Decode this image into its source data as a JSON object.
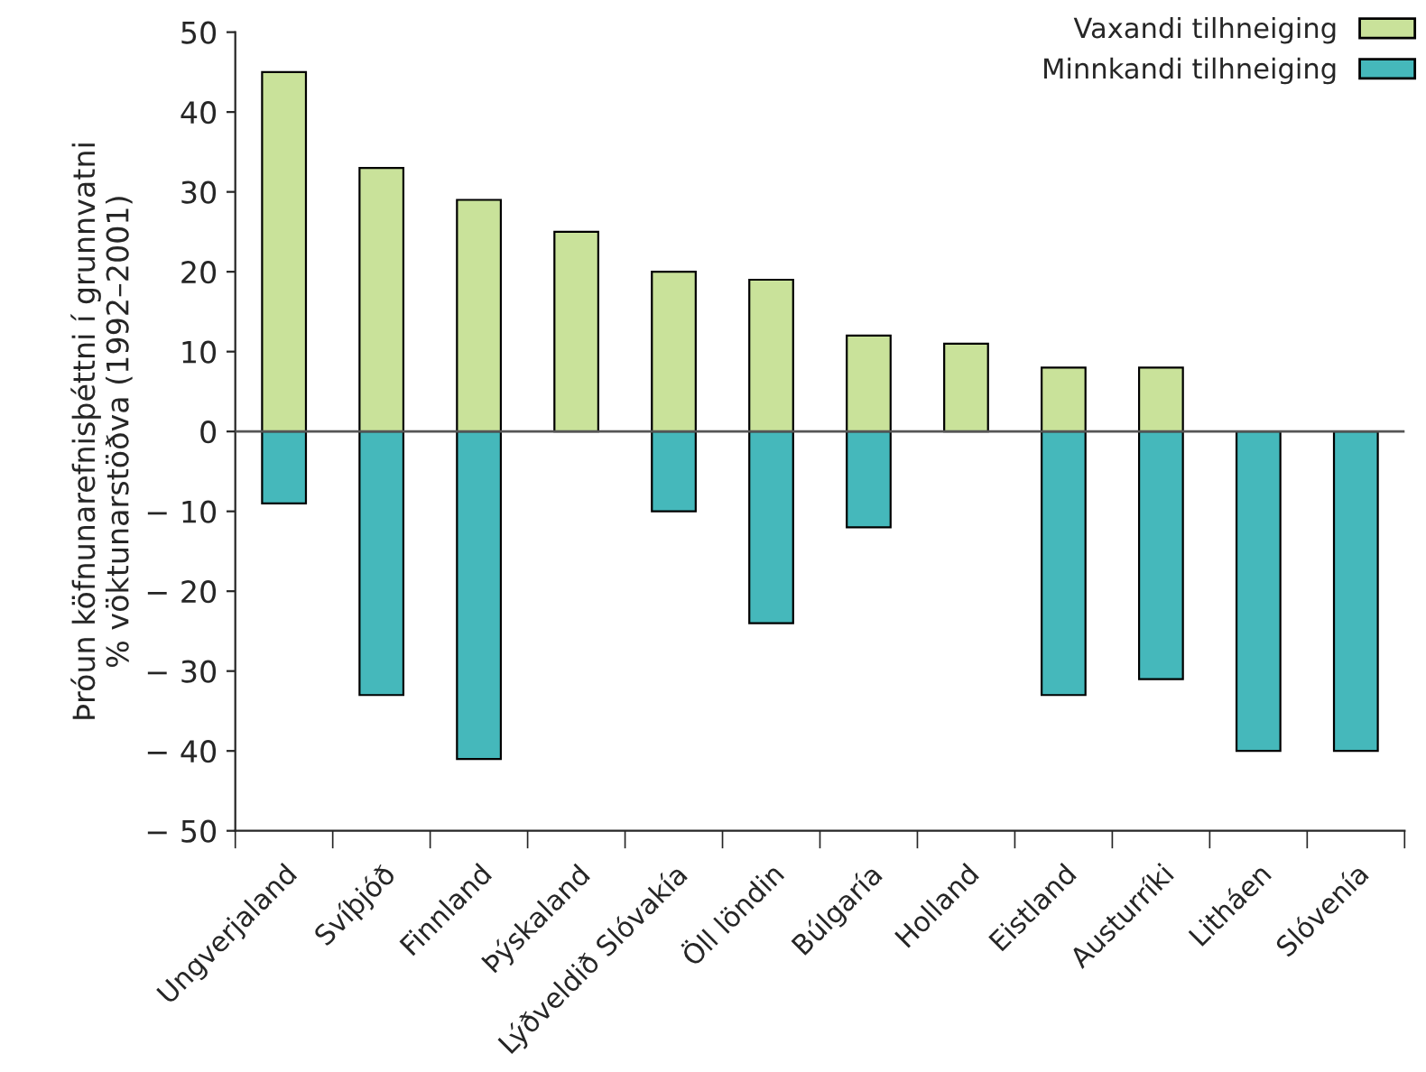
{
  "chart_data": {
    "type": "bar",
    "ylabel": "Þróun köfnunarefnisþéttni í grunnvatni\n% vöktunarstöðva (1992–2001)",
    "categories": [
      "Ungverjaland",
      "Svíþjóð",
      "Finnland",
      "Þýskaland",
      "Lýðveldið Slóvakía",
      "Öll löndin",
      "Búlgaría",
      "Holland",
      "Eistland",
      "Austurríki",
      "Litháen",
      "Slóvenía"
    ],
    "series": [
      {
        "name": "Vaxandi tilhneiging",
        "color": "#c9e29a",
        "values": [
          45,
          33,
          29,
          25,
          20,
          19,
          12,
          11,
          8,
          8,
          0,
          0
        ]
      },
      {
        "name": "Minnkandi tilhneiging",
        "color": "#45b8bb",
        "values": [
          -9,
          -33,
          -41,
          0,
          -10,
          -24,
          -12,
          0,
          -33,
          -31,
          -40,
          -40
        ]
      }
    ],
    "ylim": [
      -50,
      50
    ],
    "yticks": [
      {
        "value": -50,
        "label": "− 50"
      },
      {
        "value": -40,
        "label": "− 40"
      },
      {
        "value": -30,
        "label": "− 30"
      },
      {
        "value": -20,
        "label": "− 20"
      },
      {
        "value": -10,
        "label": "− 10"
      },
      0,
      10,
      20,
      30,
      40,
      50
    ],
    "ref_lines": [
      {
        "axis": "y",
        "value": 0,
        "color": "#555555"
      }
    ],
    "stacked": true,
    "grid": false,
    "legend": "top right"
  }
}
